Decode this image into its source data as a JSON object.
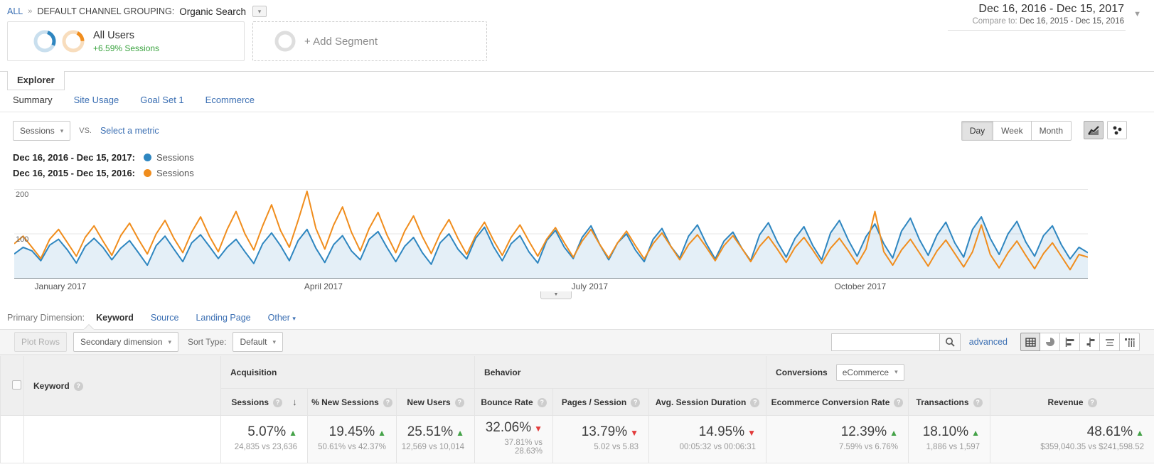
{
  "icons": {
    "caret": "▾",
    "sort_desc": "↓",
    "up_arrow": "▲",
    "down_arrow": "▼"
  },
  "breadcrumb": {
    "all": "ALL",
    "sep": "»",
    "group_label": "DEFAULT CHANNEL GROUPING:",
    "group_value": "Organic Search"
  },
  "date_range": {
    "primary": "Dec 16, 2016 - Dec 15, 2017",
    "compare_label": "Compare to:",
    "compare_value": "Dec 16, 2015 - Dec 15, 2016"
  },
  "segments": {
    "all_users": {
      "name": "All Users",
      "delta": "+6.59% Sessions"
    },
    "add_label": "+ Add Segment"
  },
  "tabs": {
    "explorer": "Explorer",
    "subtabs": [
      {
        "label": "Summary",
        "active": true
      },
      {
        "label": "Site Usage",
        "active": false
      },
      {
        "label": "Goal Set 1",
        "active": false
      },
      {
        "label": "Ecommerce",
        "active": false
      }
    ]
  },
  "metric_bar": {
    "metric": "Sessions",
    "vs_label": "VS.",
    "select_metric": "Select a metric",
    "granularity": [
      "Day",
      "Week",
      "Month"
    ],
    "granularity_active": "Day"
  },
  "legend": [
    {
      "label": "Dec 16, 2016 - Dec 15, 2017:",
      "series": "Sessions",
      "color": "#2e86c0"
    },
    {
      "label": "Dec 16, 2015 - Dec 15, 2016:",
      "series": "Sessions",
      "color": "#f08d1d"
    }
  ],
  "chart_data": {
    "type": "line",
    "title": "Daily organic search sessions, current vs previous year",
    "ylim": [
      0,
      200
    ],
    "yticks": [
      100,
      200
    ],
    "grid": true,
    "x_tick_labels": [
      "January 2017",
      "April 2017",
      "July 2017",
      "October 2017"
    ],
    "x_tick_positions": [
      0.043,
      0.288,
      0.536,
      0.788
    ],
    "series": [
      {
        "name": "Sessions (Dec 16, 2016 - Dec 15, 2017)",
        "color": "#2e86c0",
        "area": true,
        "values": [
          55,
          70,
          62,
          40,
          75,
          88,
          64,
          35,
          72,
          90,
          70,
          42,
          68,
          85,
          58,
          30,
          74,
          95,
          66,
          38,
          80,
          98,
          72,
          45,
          70,
          88,
          60,
          34,
          78,
          102,
          74,
          40,
          85,
          110,
          68,
          36,
          76,
          96,
          62,
          42,
          88,
          105,
          70,
          38,
          72,
          92,
          58,
          32,
          80,
          100,
          66,
          44,
          90,
          115,
          72,
          40,
          78,
          96,
          60,
          35,
          85,
          108,
          70,
          45,
          92,
          118,
          76,
          42,
          80,
          100,
          64,
          38,
          88,
          112,
          72,
          46,
          95,
          120,
          78,
          44,
          84,
          104,
          68,
          40,
          98,
          125,
          82,
          48,
          90,
          116,
          74,
          42,
          102,
          130,
          86,
          50,
          94,
          122,
          78,
          46,
          106,
          135,
          88,
          52,
          98,
          126,
          80,
          48,
          110,
          138,
          90,
          54,
          100,
          128,
          82,
          50,
          96,
          118,
          76,
          44,
          70,
          58
        ]
      },
      {
        "name": "Sessions (Dec 16, 2015 - Dec 15, 2016)",
        "color": "#f08d1d",
        "area": false,
        "values": [
          78,
          95,
          70,
          45,
          88,
          110,
          80,
          50,
          92,
          118,
          84,
          52,
          96,
          124,
          88,
          55,
          100,
          130,
          90,
          58,
          104,
          138,
          95,
          60,
          110,
          150,
          100,
          64,
          118,
          165,
          108,
          70,
          130,
          195,
          112,
          66,
          120,
          160,
          104,
          62,
          112,
          148,
          98,
          58,
          106,
          140,
          94,
          56,
          100,
          132,
          90,
          54,
          96,
          126,
          86,
          52,
          92,
          120,
          84,
          50,
          88,
          114,
          80,
          48,
          84,
          110,
          76,
          46,
          80,
          106,
          74,
          44,
          78,
          102,
          72,
          42,
          76,
          98,
          70,
          40,
          74,
          96,
          68,
          38,
          72,
          94,
          66,
          36,
          70,
          92,
          64,
          34,
          68,
          90,
          62,
          32,
          66,
          150,
          60,
          30,
          64,
          88,
          58,
          28,
          62,
          86,
          56,
          26,
          60,
          120,
          54,
          24,
          58,
          84,
          52,
          22,
          56,
          80,
          50,
          20,
          54,
          48
        ]
      }
    ]
  },
  "primary_dimension": {
    "label": "Primary Dimension:",
    "active": "Keyword",
    "options": [
      "Source",
      "Landing Page"
    ],
    "other": "Other"
  },
  "toolbar": {
    "plot_rows": "Plot Rows",
    "secondary_dimension": "Secondary dimension",
    "sort_type_label": "Sort Type:",
    "sort_type_value": "Default",
    "search_value": "",
    "advanced": "advanced"
  },
  "table": {
    "dimension_header": "Keyword",
    "groups": [
      {
        "label": "Acquisition"
      },
      {
        "label": "Behavior"
      },
      {
        "label": "Conversions",
        "dropdown": "eCommerce"
      }
    ],
    "columns": [
      {
        "label": "Sessions",
        "sorted": true,
        "pct": "5.07%",
        "dir": "up",
        "detail": "24,835 vs 23,636"
      },
      {
        "label": "% New Sessions",
        "pct": "19.45%",
        "dir": "up",
        "detail": "50.61% vs 42.37%"
      },
      {
        "label": "New Users",
        "pct": "25.51%",
        "dir": "up",
        "detail": "12,569 vs 10,014"
      },
      {
        "label": "Bounce Rate",
        "pct": "32.06%",
        "dir": "down",
        "detail": "37.81% vs 28.63%"
      },
      {
        "label": "Pages / Session",
        "pct": "13.79%",
        "dir": "down",
        "detail": "5.02 vs 5.83"
      },
      {
        "label": "Avg. Session Duration",
        "pct": "14.95%",
        "dir": "down",
        "detail": "00:05:32 vs 00:06:31"
      },
      {
        "label": "Ecommerce Conversion Rate",
        "pct": "12.39%",
        "dir": "up",
        "detail": "7.59% vs 6.76%"
      },
      {
        "label": "Transactions",
        "pct": "18.10%",
        "dir": "up",
        "detail": "1,886 vs 1,597"
      },
      {
        "label": "Revenue",
        "pct": "48.61%",
        "dir": "up",
        "detail": "$359,040.35 vs $241,598.52"
      }
    ]
  }
}
